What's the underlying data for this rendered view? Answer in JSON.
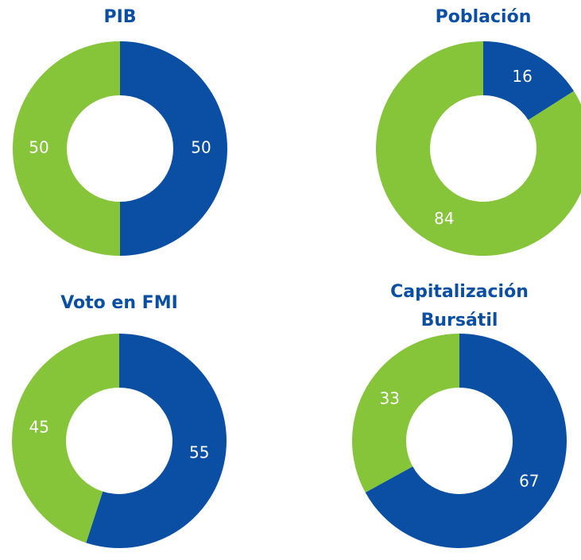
{
  "chart_data": [
    {
      "type": "pie",
      "title": "PIB",
      "values": [
        50,
        50
      ],
      "colors": [
        "#0a4fa3",
        "#86c43a"
      ],
      "donut": true
    },
    {
      "type": "pie",
      "title": "Población",
      "values": [
        16,
        84
      ],
      "colors": [
        "#0a4fa3",
        "#86c43a"
      ],
      "donut": true
    },
    {
      "type": "pie",
      "title": "Voto en FMI",
      "values": [
        55,
        45
      ],
      "colors": [
        "#0a4fa3",
        "#86c43a"
      ],
      "donut": true
    },
    {
      "type": "pie",
      "title": "Capitalización Bursátil",
      "values": [
        67,
        33
      ],
      "colors": [
        "#0a4fa3",
        "#86c43a"
      ],
      "donut": true
    }
  ]
}
